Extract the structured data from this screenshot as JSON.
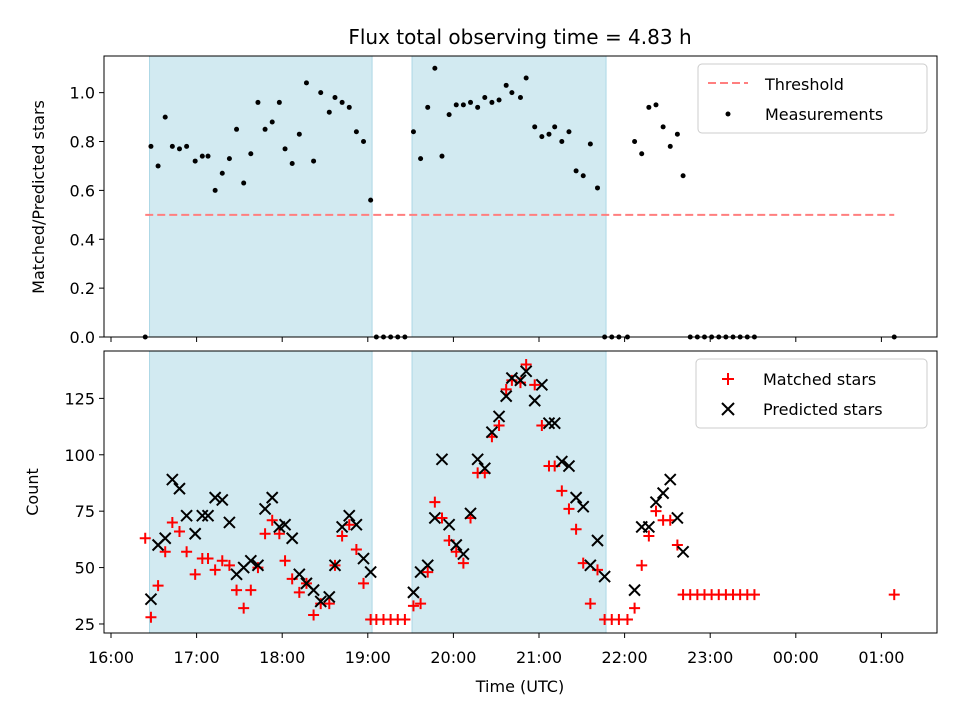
{
  "chart_data": [
    {
      "type": "scatter",
      "title": "Flux total observing time = 4.83 h",
      "xlabel": "",
      "ylabel": "Matched/Predicted stars",
      "ylim": [
        0,
        1.15
      ],
      "yticks": [
        "0.0",
        "0.2",
        "0.4",
        "0.6",
        "0.8",
        "1.0"
      ],
      "grid": false,
      "legend_position": "upper right",
      "legend": [
        "Threshold",
        "Measurements"
      ],
      "threshold": {
        "name": "Threshold",
        "y": 0.5,
        "x_start": "16:24",
        "x_end": "01:09",
        "color": "#ff7f7f",
        "style": "dashed"
      },
      "shaded_intervals": [
        [
          "16:27",
          "19:03"
        ],
        [
          "19:31",
          "21:47"
        ]
      ],
      "shade_color": "#add8e6",
      "series": [
        {
          "name": "Measurements",
          "color": "#000000",
          "marker": "dot",
          "points": [
            [
              "16:24",
              0.0
            ],
            [
              "16:28",
              0.78
            ],
            [
              "16:33",
              0.7
            ],
            [
              "16:38",
              0.9
            ],
            [
              "16:43",
              0.78
            ],
            [
              "16:48",
              0.77
            ],
            [
              "16:53",
              0.78
            ],
            [
              "16:59",
              0.72
            ],
            [
              "17:04",
              0.74
            ],
            [
              "17:08",
              0.74
            ],
            [
              "17:13",
              0.6
            ],
            [
              "17:18",
              0.67
            ],
            [
              "17:23",
              0.73
            ],
            [
              "17:28",
              0.85
            ],
            [
              "17:33",
              0.63
            ],
            [
              "17:38",
              0.75
            ],
            [
              "17:43",
              0.96
            ],
            [
              "17:48",
              0.85
            ],
            [
              "17:53",
              0.88
            ],
            [
              "17:58",
              0.96
            ],
            [
              "18:02",
              0.77
            ],
            [
              "18:07",
              0.71
            ],
            [
              "18:12",
              0.83
            ],
            [
              "18:17",
              1.04
            ],
            [
              "18:22",
              0.72
            ],
            [
              "18:27",
              1.0
            ],
            [
              "18:33",
              0.92
            ],
            [
              "18:37",
              0.98
            ],
            [
              "18:42",
              0.96
            ],
            [
              "18:47",
              0.94
            ],
            [
              "18:52",
              0.84
            ],
            [
              "18:57",
              0.8
            ],
            [
              "19:02",
              0.56
            ],
            [
              "19:06",
              0.0
            ],
            [
              "19:11",
              0.0
            ],
            [
              "19:16",
              0.0
            ],
            [
              "19:21",
              0.0
            ],
            [
              "19:26",
              0.0
            ],
            [
              "19:32",
              0.84
            ],
            [
              "19:37",
              0.73
            ],
            [
              "19:42",
              0.94
            ],
            [
              "19:47",
              1.1
            ],
            [
              "19:52",
              0.74
            ],
            [
              "19:57",
              0.91
            ],
            [
              "20:02",
              0.95
            ],
            [
              "20:07",
              0.95
            ],
            [
              "20:12",
              0.96
            ],
            [
              "20:17",
              0.94
            ],
            [
              "20:22",
              0.98
            ],
            [
              "20:27",
              0.96
            ],
            [
              "20:32",
              0.97
            ],
            [
              "20:37",
              1.03
            ],
            [
              "20:41",
              1.0
            ],
            [
              "20:47",
              0.98
            ],
            [
              "20:51",
              1.06
            ],
            [
              "20:57",
              0.86
            ],
            [
              "21:02",
              0.82
            ],
            [
              "21:07",
              0.83
            ],
            [
              "21:11",
              0.86
            ],
            [
              "21:16",
              0.8
            ],
            [
              "21:21",
              0.84
            ],
            [
              "21:26",
              0.68
            ],
            [
              "21:31",
              0.66
            ],
            [
              "21:36",
              0.79
            ],
            [
              "21:41",
              0.61
            ],
            [
              "21:46",
              0.0
            ],
            [
              "21:51",
              0.0
            ],
            [
              "21:56",
              0.0
            ],
            [
              "22:02",
              0.0
            ],
            [
              "22:07",
              0.8
            ],
            [
              "22:12",
              0.75
            ],
            [
              "22:17",
              0.94
            ],
            [
              "22:22",
              0.95
            ],
            [
              "22:27",
              0.86
            ],
            [
              "22:32",
              0.78
            ],
            [
              "22:37",
              0.83
            ],
            [
              "22:41",
              0.66
            ],
            [
              "22:46",
              0.0
            ],
            [
              "22:51",
              0.0
            ],
            [
              "22:56",
              0.0
            ],
            [
              "23:01",
              0.0
            ],
            [
              "23:06",
              0.0
            ],
            [
              "23:11",
              0.0
            ],
            [
              "23:16",
              0.0
            ],
            [
              "23:21",
              0.0
            ],
            [
              "23:26",
              0.0
            ],
            [
              "23:31",
              0.0
            ],
            [
              "01:09",
              0.0
            ]
          ]
        }
      ]
    },
    {
      "type": "scatter",
      "title": "",
      "xlabel": "Time (UTC)",
      "ylabel": "Count",
      "ylim": [
        21,
        146
      ],
      "yticks": [
        "25",
        "50",
        "75",
        "100",
        "125"
      ],
      "xticks": [
        "16:00",
        "17:00",
        "18:00",
        "19:00",
        "20:00",
        "21:00",
        "22:00",
        "23:00",
        "00:00",
        "01:00"
      ],
      "grid": false,
      "legend_position": "upper right",
      "legend": [
        "Matched stars",
        "Predicted stars"
      ],
      "shaded_intervals": [
        [
          "16:27",
          "19:03"
        ],
        [
          "19:31",
          "21:47"
        ]
      ],
      "shade_color": "#add8e6",
      "series": [
        {
          "name": "Matched stars",
          "color": "#ff0000",
          "marker": "plus",
          "points": [
            [
              "16:24",
              63
            ],
            [
              "16:28",
              28
            ],
            [
              "16:33",
              42
            ],
            [
              "16:38",
              57
            ],
            [
              "16:43",
              70
            ],
            [
              "16:48",
              66
            ],
            [
              "16:53",
              57
            ],
            [
              "16:59",
              47
            ],
            [
              "17:04",
              54
            ],
            [
              "17:08",
              54
            ],
            [
              "17:13",
              49
            ],
            [
              "17:18",
              53
            ],
            [
              "17:23",
              51
            ],
            [
              "17:28",
              40
            ],
            [
              "17:33",
              32
            ],
            [
              "17:38",
              40
            ],
            [
              "17:43",
              50
            ],
            [
              "17:48",
              65
            ],
            [
              "17:53",
              71
            ],
            [
              "17:58",
              65
            ],
            [
              "18:02",
              53
            ],
            [
              "18:07",
              45
            ],
            [
              "18:12",
              39
            ],
            [
              "18:17",
              43
            ],
            [
              "18:22",
              29
            ],
            [
              "18:27",
              34
            ],
            [
              "18:33",
              34
            ],
            [
              "18:37",
              51
            ],
            [
              "18:42",
              64
            ],
            [
              "18:47",
              69
            ],
            [
              "18:52",
              58
            ],
            [
              "18:57",
              43
            ],
            [
              "19:02",
              27
            ],
            [
              "19:06",
              27
            ],
            [
              "19:11",
              27
            ],
            [
              "19:16",
              27
            ],
            [
              "19:21",
              27
            ],
            [
              "19:26",
              27
            ],
            [
              "19:32",
              33
            ],
            [
              "19:37",
              34
            ],
            [
              "19:42",
              48
            ],
            [
              "19:47",
              79
            ],
            [
              "19:52",
              72
            ],
            [
              "19:57",
              62
            ],
            [
              "20:02",
              57
            ],
            [
              "20:07",
              52
            ],
            [
              "20:12",
              72
            ],
            [
              "20:17",
              92
            ],
            [
              "20:22",
              92
            ],
            [
              "20:27",
              108
            ],
            [
              "20:32",
              113
            ],
            [
              "20:37",
              129
            ],
            [
              "20:41",
              133
            ],
            [
              "20:47",
              132
            ],
            [
              "20:51",
              140
            ],
            [
              "20:57",
              131
            ],
            [
              "21:02",
              113
            ],
            [
              "21:07",
              95
            ],
            [
              "21:11",
              95
            ],
            [
              "21:16",
              84
            ],
            [
              "21:21",
              76
            ],
            [
              "21:26",
              67
            ],
            [
              "21:31",
              52
            ],
            [
              "21:36",
              34
            ],
            [
              "21:41",
              49
            ],
            [
              "21:46",
              27
            ],
            [
              "21:51",
              27
            ],
            [
              "21:56",
              27
            ],
            [
              "22:02",
              27
            ],
            [
              "22:07",
              32
            ],
            [
              "22:12",
              51
            ],
            [
              "22:17",
              64
            ],
            [
              "22:22",
              75
            ],
            [
              "22:27",
              71
            ],
            [
              "22:32",
              71
            ],
            [
              "22:37",
              60
            ],
            [
              "22:41",
              38
            ],
            [
              "22:46",
              38
            ],
            [
              "22:51",
              38
            ],
            [
              "22:56",
              38
            ],
            [
              "23:01",
              38
            ],
            [
              "23:06",
              38
            ],
            [
              "23:11",
              38
            ],
            [
              "23:16",
              38
            ],
            [
              "23:21",
              38
            ],
            [
              "23:26",
              38
            ],
            [
              "23:31",
              38
            ],
            [
              "01:09",
              38
            ]
          ]
        },
        {
          "name": "Predicted stars",
          "color": "#000000",
          "marker": "x",
          "points": [
            [
              "16:28",
              36
            ],
            [
              "16:33",
              60
            ],
            [
              "16:38",
              63
            ],
            [
              "16:43",
              89
            ],
            [
              "16:48",
              85
            ],
            [
              "16:53",
              73
            ],
            [
              "16:59",
              65
            ],
            [
              "17:04",
              73
            ],
            [
              "17:08",
              73
            ],
            [
              "17:13",
              81
            ],
            [
              "17:18",
              80
            ],
            [
              "17:23",
              70
            ],
            [
              "17:28",
              47
            ],
            [
              "17:33",
              50
            ],
            [
              "17:38",
              53
            ],
            [
              "17:43",
              51
            ],
            [
              "17:48",
              76
            ],
            [
              "17:53",
              81
            ],
            [
              "17:58",
              68
            ],
            [
              "18:02",
              69
            ],
            [
              "18:07",
              63
            ],
            [
              "18:12",
              47
            ],
            [
              "18:17",
              43
            ],
            [
              "18:22",
              40
            ],
            [
              "18:27",
              35
            ],
            [
              "18:33",
              37
            ],
            [
              "18:37",
              51
            ],
            [
              "18:42",
              68
            ],
            [
              "18:47",
              73
            ],
            [
              "18:52",
              69
            ],
            [
              "18:57",
              54
            ],
            [
              "19:02",
              48
            ],
            [
              "19:32",
              39
            ],
            [
              "19:37",
              48
            ],
            [
              "19:42",
              51
            ],
            [
              "19:47",
              72
            ],
            [
              "19:52",
              98
            ],
            [
              "19:57",
              69
            ],
            [
              "20:02",
              60
            ],
            [
              "20:07",
              56
            ],
            [
              "20:12",
              74
            ],
            [
              "20:17",
              98
            ],
            [
              "20:22",
              94
            ],
            [
              "20:27",
              110
            ],
            [
              "20:32",
              117
            ],
            [
              "20:37",
              126
            ],
            [
              "20:41",
              134
            ],
            [
              "20:47",
              133
            ],
            [
              "20:51",
              137
            ],
            [
              "20:57",
              124
            ],
            [
              "21:02",
              131
            ],
            [
              "21:07",
              114
            ],
            [
              "21:11",
              114
            ],
            [
              "21:16",
              97
            ],
            [
              "21:21",
              95
            ],
            [
              "21:26",
              81
            ],
            [
              "21:31",
              77
            ],
            [
              "21:36",
              51
            ],
            [
              "21:41",
              62
            ],
            [
              "21:46",
              46
            ],
            [
              "22:07",
              40
            ],
            [
              "22:12",
              68
            ],
            [
              "22:17",
              68
            ],
            [
              "22:22",
              79
            ],
            [
              "22:27",
              83
            ],
            [
              "22:32",
              89
            ],
            [
              "22:37",
              72
            ],
            [
              "22:41",
              57
            ]
          ]
        }
      ]
    }
  ]
}
